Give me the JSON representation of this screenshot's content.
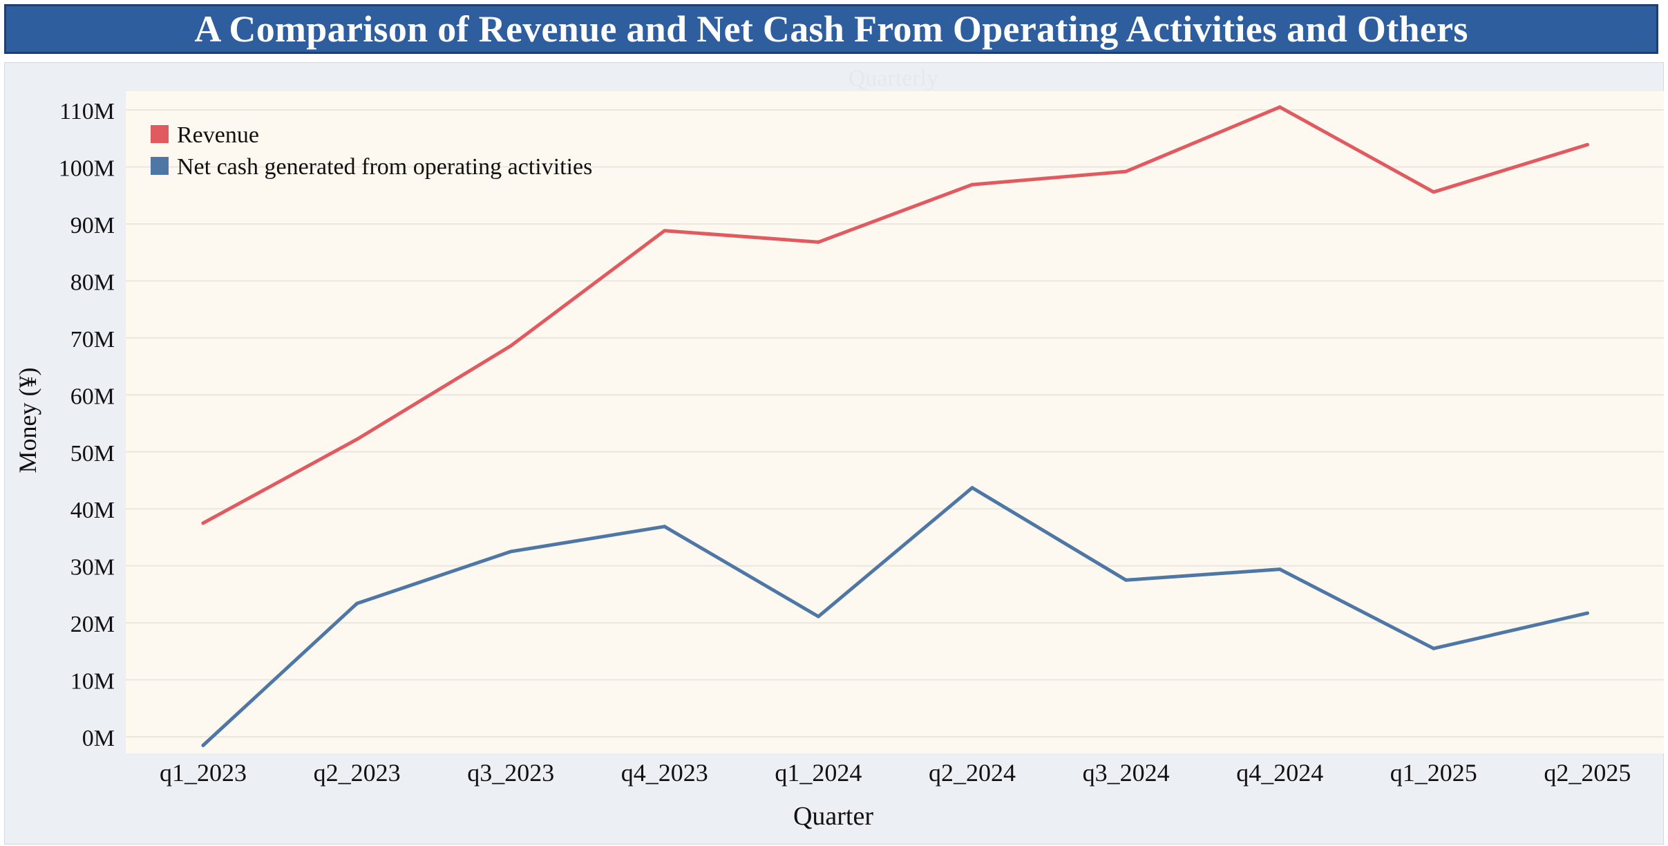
{
  "title": "A Comparison of Revenue and Net Cash From Operating Activities and Others",
  "chart_data": {
    "type": "line",
    "subtitle": "Quarterly",
    "xlabel": "Quarter",
    "ylabel": "Money (¥)",
    "categories": [
      "q1_2023",
      "q2_2023",
      "q3_2023",
      "q4_2023",
      "q1_2024",
      "q2_2024",
      "q3_2024",
      "q4_2024",
      "q1_2025",
      "q2_2025"
    ],
    "ylim": [
      -2,
      112
    ],
    "yticks": [
      0,
      10,
      20,
      30,
      40,
      50,
      60,
      70,
      80,
      90,
      100,
      110
    ],
    "ytick_labels": [
      "0M",
      "10M",
      "20M",
      "30M",
      "40M",
      "50M",
      "60M",
      "70M",
      "80M",
      "90M",
      "100M",
      "110M"
    ],
    "grid": true,
    "legend_position": "top-left",
    "series": [
      {
        "name": "Revenue",
        "color": "#e05a5f",
        "values": [
          37.5,
          52.2,
          68.6,
          88.8,
          86.8,
          96.9,
          99.2,
          110.5,
          95.6,
          103.9
        ]
      },
      {
        "name": "Net cash generated from operating activities",
        "color": "#4e77a6",
        "values": [
          -1.5,
          23.4,
          32.5,
          36.9,
          21.1,
          43.7,
          27.5,
          29.4,
          15.5,
          21.7
        ]
      }
    ]
  }
}
